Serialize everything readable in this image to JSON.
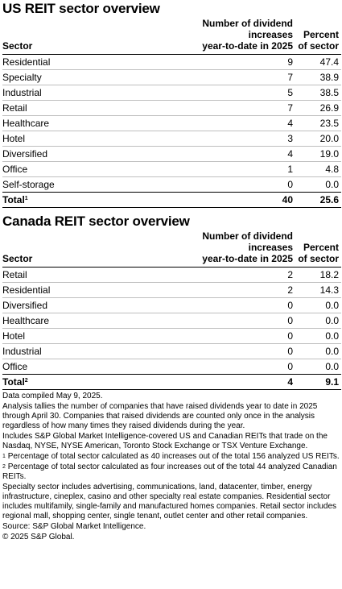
{
  "us": {
    "title": "US REIT sector overview",
    "headers": {
      "sector": "Sector",
      "increases_line1": "Number of dividend increases",
      "increases_line2": "year-to-date in 2025",
      "percent_line1": "Percent",
      "percent_line2": "of sector"
    },
    "rows": [
      {
        "sector": "Residential",
        "increases": "9",
        "percent": "47.4"
      },
      {
        "sector": "Specialty",
        "increases": "7",
        "percent": "38.9"
      },
      {
        "sector": "Industrial",
        "increases": "5",
        "percent": "38.5"
      },
      {
        "sector": "Retail",
        "increases": "7",
        "percent": "26.9"
      },
      {
        "sector": "Healthcare",
        "increases": "4",
        "percent": "23.5"
      },
      {
        "sector": "Hotel",
        "increases": "3",
        "percent": "20.0"
      },
      {
        "sector": "Diversified",
        "increases": "4",
        "percent": "19.0"
      },
      {
        "sector": "Office",
        "increases": "1",
        "percent": "4.8"
      },
      {
        "sector": "Self-storage",
        "increases": "0",
        "percent": "0.0"
      }
    ],
    "total": {
      "label": "Total",
      "marker": "1",
      "increases": "40",
      "percent": "25.6"
    }
  },
  "canada": {
    "title": "Canada REIT sector overview",
    "headers": {
      "sector": "Sector",
      "increases_line1": "Number of dividend increases",
      "increases_line2": "year-to-date in 2025",
      "percent_line1": "Percent",
      "percent_line2": "of sector"
    },
    "rows": [
      {
        "sector": "Retail",
        "increases": "2",
        "percent": "18.2"
      },
      {
        "sector": "Residential",
        "increases": "2",
        "percent": "14.3"
      },
      {
        "sector": "Diversified",
        "increases": "0",
        "percent": "0.0"
      },
      {
        "sector": "Healthcare",
        "increases": "0",
        "percent": "0.0"
      },
      {
        "sector": "Hotel",
        "increases": "0",
        "percent": "0.0"
      },
      {
        "sector": "Industrial",
        "increases": "0",
        "percent": "0.0"
      },
      {
        "sector": "Office",
        "increases": "0",
        "percent": "0.0"
      }
    ],
    "total": {
      "label": "Total",
      "marker": "2",
      "increases": "4",
      "percent": "9.1"
    }
  },
  "notes": {
    "compiled": "Data compiled May 9, 2025.",
    "analysis": "Analysis tallies the number of companies that have raised dividends year to date in 2025 through April 30. Companies that raised dividends are counted only once in the analysis regardless of how many times they raised dividends during the year.",
    "includes": "Includes S&P Global Market Intelligence-covered US and Canadian REITs that trade on the Nasdaq, NYSE, NYSE American, Toronto Stock Exchange or TSX Venture Exchange.",
    "footnote1_marker": "1",
    "footnote1": "Percentage of total sector calculated as 40 increases out of the total 156 analyzed US REITs.",
    "footnote2_marker": "2",
    "footnote2": "Percentage of total sector calculated as four increases out of the total 44 analyzed Canadian REITs.",
    "specialty": "Specialty sector includes advertising, communications, land, datacenter, timber, energy infrastructure, cineplex, casino and other specialty real estate companies.",
    "residential": "Residential sector includes multifamily, single-family and manufactured homes companies.",
    "retail": "Retail sector includes regional mall, shopping center, single tenant, outlet center and other retail companies.",
    "source": "Source: S&P Global Market Intelligence.",
    "copyright": "© 2025 S&P Global."
  }
}
